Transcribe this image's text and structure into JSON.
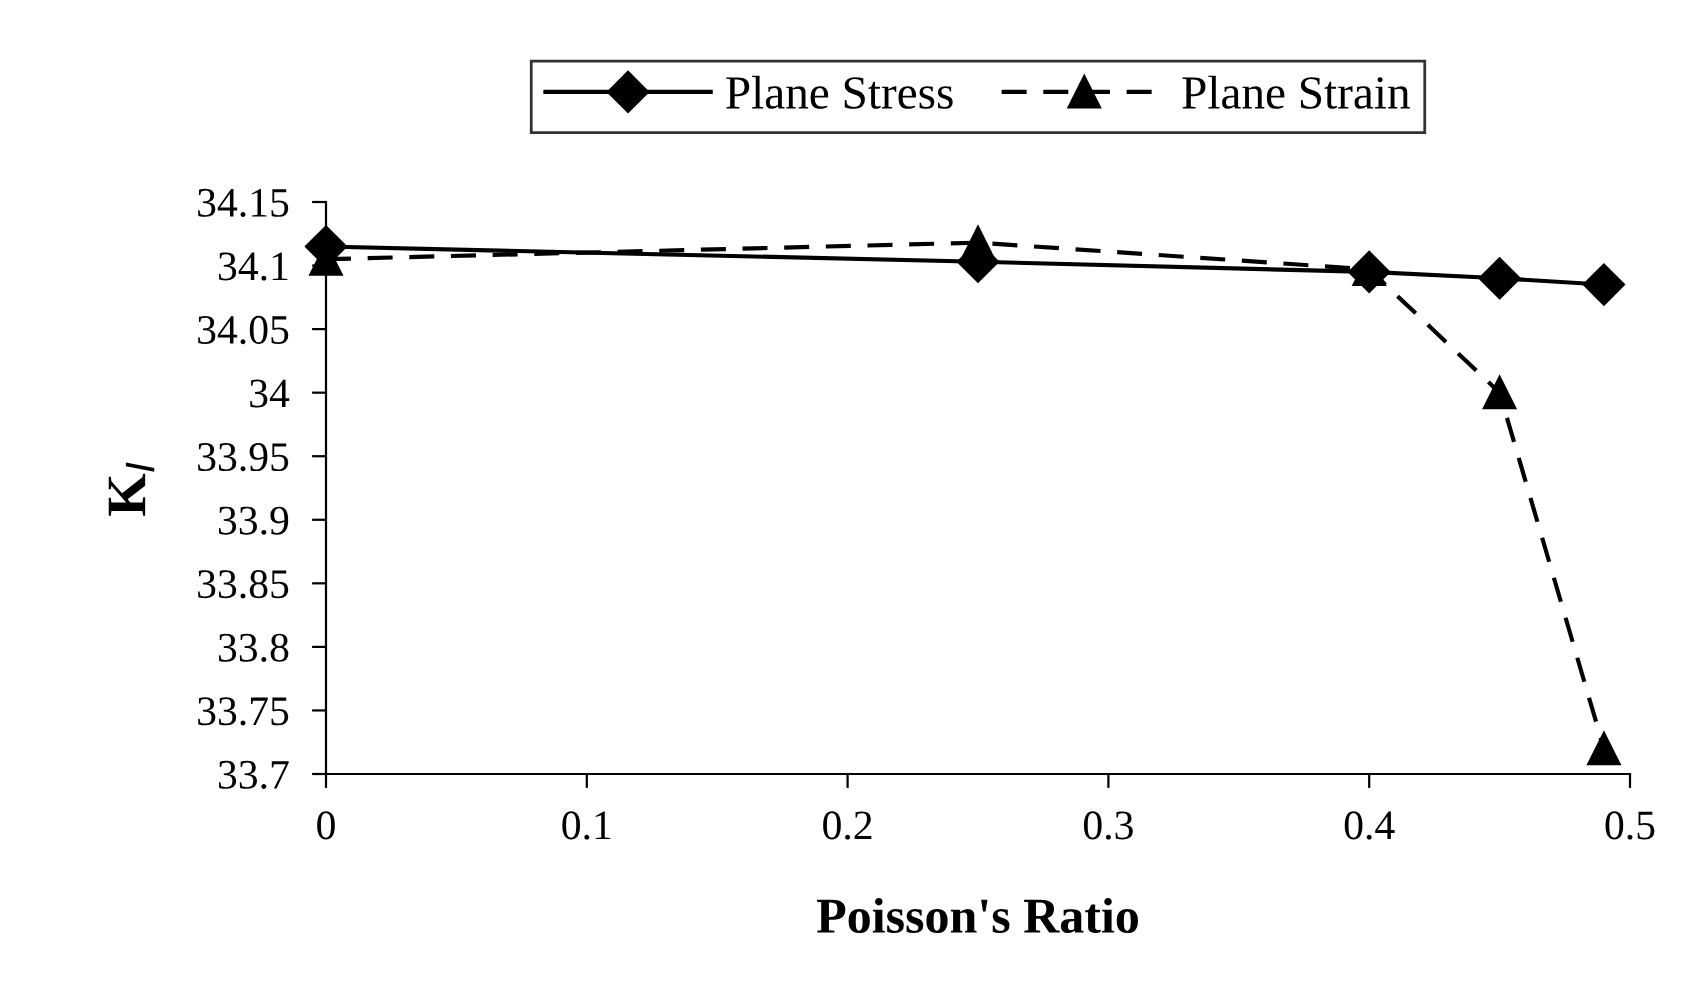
{
  "chart_data": {
    "type": "line",
    "xlabel": "Poisson's Ratio",
    "ylabel": "K$_{I}$",
    "x": [
      0,
      0.25,
      0.4,
      0.45,
      0.49
    ],
    "series": [
      {
        "name": "Plane Stress",
        "color": "#000000",
        "values": [
          34.115,
          34.103,
          34.095,
          34.09,
          34.085
        ],
        "marker": "diamond",
        "line_style": "solid"
      },
      {
        "name": "Plane Strain",
        "color": "#000000",
        "values": [
          34.105,
          34.118,
          34.097,
          34.0,
          33.72
        ],
        "marker": "triangle",
        "line_style": "dashed"
      }
    ],
    "xlim": [
      0,
      0.5
    ],
    "xticks": [
      0,
      0.1,
      0.2,
      0.3,
      0.4,
      0.5
    ],
    "ylim": [
      33.7,
      34.15
    ],
    "yticks": [
      33.7,
      33.75,
      33.8,
      33.85,
      33.9,
      33.95,
      34,
      34.05,
      34.1,
      34.15
    ],
    "grid": false,
    "legend": "top"
  }
}
